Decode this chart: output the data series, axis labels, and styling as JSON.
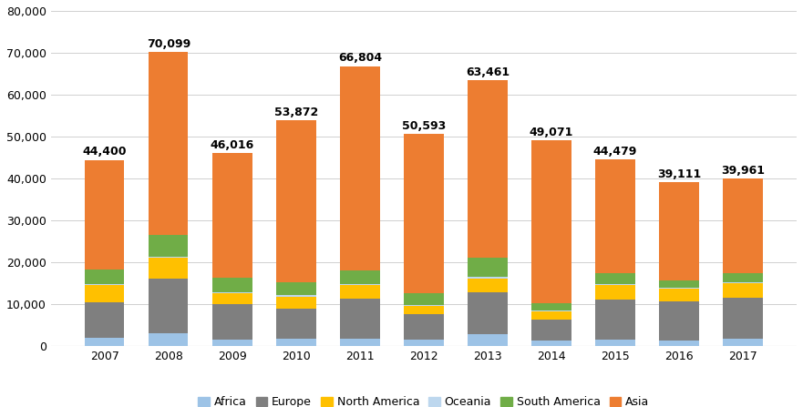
{
  "years": [
    2007,
    2008,
    2009,
    2010,
    2011,
    2012,
    2013,
    2014,
    2015,
    2016,
    2017
  ],
  "totals": [
    44400,
    70099,
    46016,
    53872,
    66804,
    50593,
    63461,
    49071,
    44479,
    39111,
    39961
  ],
  "categories": [
    "Africa",
    "Europe",
    "North America",
    "Oceania",
    "South America",
    "Asia"
  ],
  "colors": [
    "#9dc3e6",
    "#7f7f7f",
    "#ffc000",
    "#bdd7ee",
    "#70ad47",
    "#ed7d31"
  ],
  "data": {
    "Africa": [
      2000,
      3000,
      1500,
      1800,
      1800,
      1500,
      2800,
      1200,
      1500,
      1400,
      1700
    ],
    "Europe": [
      8500,
      13000,
      8500,
      7000,
      9500,
      6000,
      10000,
      5000,
      9500,
      9200,
      9800
    ],
    "North America": [
      4000,
      5000,
      2500,
      3000,
      3200,
      2000,
      3300,
      2000,
      3500,
      3000,
      3500
    ],
    "Oceania": [
      300,
      400,
      300,
      300,
      300,
      300,
      400,
      300,
      300,
      300,
      300
    ],
    "South America": [
      3500,
      5200,
      3500,
      3000,
      3200,
      2800,
      4500,
      1800,
      2500,
      1800,
      2000
    ],
    "Asia": [
      26100,
      43499,
      29716,
      38772,
      48804,
      37993,
      42461,
      38771,
      27179,
      23411,
      22661
    ]
  },
  "ylabel": "",
  "ylim": [
    0,
    80000
  ],
  "yticks": [
    0,
    10000,
    20000,
    30000,
    40000,
    50000,
    60000,
    70000,
    80000
  ],
  "background_color": "#ffffff",
  "label_fontsize": 9,
  "tick_fontsize": 9,
  "bar_width": 0.62
}
